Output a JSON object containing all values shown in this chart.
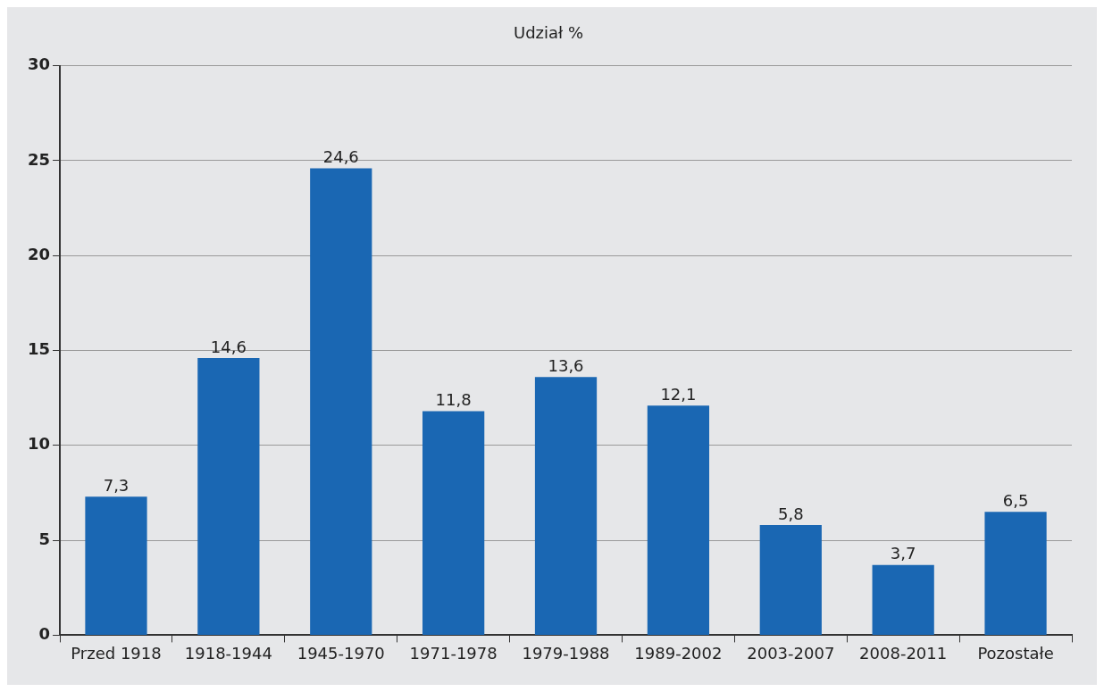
{
  "chart_data": {
    "type": "bar",
    "title": "Udział %",
    "categories": [
      "Przed 1918",
      "1918-1944",
      "1945-1970",
      "1971-1978",
      "1979-1988",
      "1989-2002",
      "2003-2007",
      "2008-2011",
      "Pozostałe"
    ],
    "values": [
      7.3,
      14.6,
      24.6,
      11.8,
      13.6,
      12.1,
      5.8,
      3.7,
      6.5
    ],
    "value_labels": [
      "7,3",
      "14,6",
      "24,6",
      "11,8",
      "13,6",
      "12,1",
      "5,8",
      "3,7",
      "6,5"
    ],
    "color": "#1a67b3",
    "ylim": [
      0,
      30
    ],
    "yticks": [
      0,
      5,
      10,
      15,
      20,
      25,
      30
    ],
    "grid": "y",
    "legend": false
  }
}
